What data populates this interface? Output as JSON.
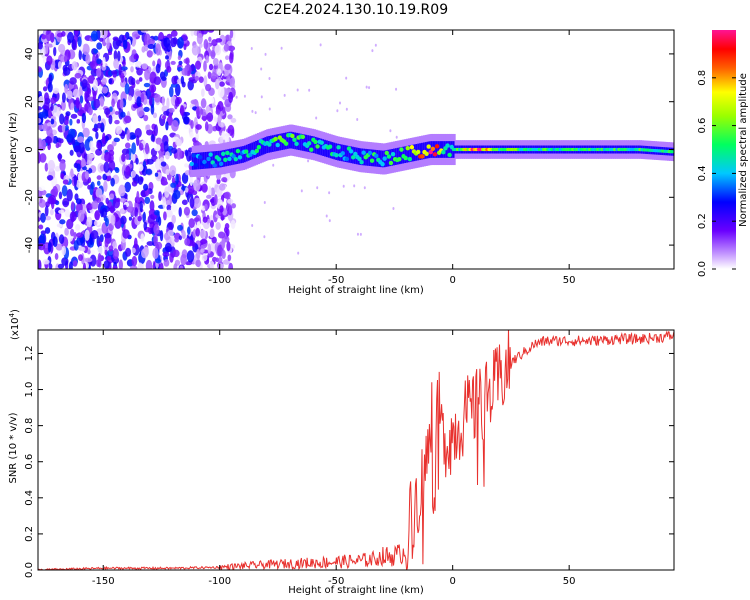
{
  "title": "C2E4.2024.130.10.19.R09",
  "chart_data": [
    {
      "type": "heatmap",
      "xlabel": "Height of straight line (km)",
      "ylabel": "Frequency (Hz)",
      "xlim": [
        -178,
        95
      ],
      "ylim": [
        -50,
        50
      ],
      "xticks": [
        -150,
        -100,
        -50,
        0,
        50
      ],
      "yticks": [
        -40,
        -20,
        0,
        20,
        40
      ],
      "colorbar": {
        "label": "Normalized spectral amplitude",
        "range": [
          0,
          1
        ],
        "ticks": [
          "0.0",
          "0.2",
          "0.4",
          "0.6",
          "0.8"
        ],
        "colormap": "rainbow (white-violet-blue-cyan-green-yellow-red-magenta)"
      },
      "ridge": {
        "description": "narrowband signal centered near 0 Hz",
        "x": [
          -112,
          -100,
          -90,
          -80,
          -70,
          -60,
          -50,
          -40,
          -30,
          -20,
          -10,
          0,
          10,
          20,
          40,
          60,
          80,
          95
        ],
        "freq": [
          -5,
          -4,
          -2,
          2,
          4,
          2,
          -1,
          -3,
          -4,
          -2,
          0,
          0,
          0,
          0,
          0,
          0,
          0,
          -1
        ],
        "amplitude": [
          0.35,
          0.4,
          0.45,
          0.5,
          0.55,
          0.5,
          0.45,
          0.45,
          0.5,
          0.6,
          0.95,
          0.4,
          0.95,
          0.55,
          0.5,
          0.5,
          0.5,
          0.5
        ]
      },
      "noise_region_x": [
        -178,
        -100
      ]
    },
    {
      "type": "line",
      "xlabel": "Height of straight line (km)",
      "ylabel": "SNR (10 * v/v)",
      "yscale_label": "(x10",
      "yscale_exp": "4",
      "yscale_close": ")",
      "xlim": [
        -178,
        95
      ],
      "ylim": [
        0,
        1.33
      ],
      "xticks": [
        -150,
        -100,
        -50,
        0,
        50
      ],
      "yticks": [
        "0.0",
        "0.2",
        "0.4",
        "0.6",
        "0.8",
        "1.0",
        "1.2"
      ],
      "color": "#e8312e",
      "series": [
        {
          "x": [
            -178,
            -150,
            -120,
            -100,
            -80,
            -60,
            -40,
            -30,
            -25,
            -20,
            -18,
            -15,
            -12,
            -10,
            -8,
            -5,
            -2,
            0,
            5,
            10,
            15,
            20,
            25,
            30,
            35,
            40,
            50,
            60,
            70,
            80,
            90,
            95
          ],
          "values": [
            0.0,
            0.01,
            0.01,
            0.015,
            0.03,
            0.04,
            0.05,
            0.07,
            0.08,
            0.1,
            0.3,
            0.4,
            0.55,
            0.7,
            0.5,
            0.75,
            0.72,
            0.75,
            0.85,
            0.9,
            0.95,
            1.05,
            1.15,
            1.2,
            1.25,
            1.27,
            1.27,
            1.27,
            1.28,
            1.28,
            1.29,
            1.3
          ]
        }
      ]
    }
  ]
}
